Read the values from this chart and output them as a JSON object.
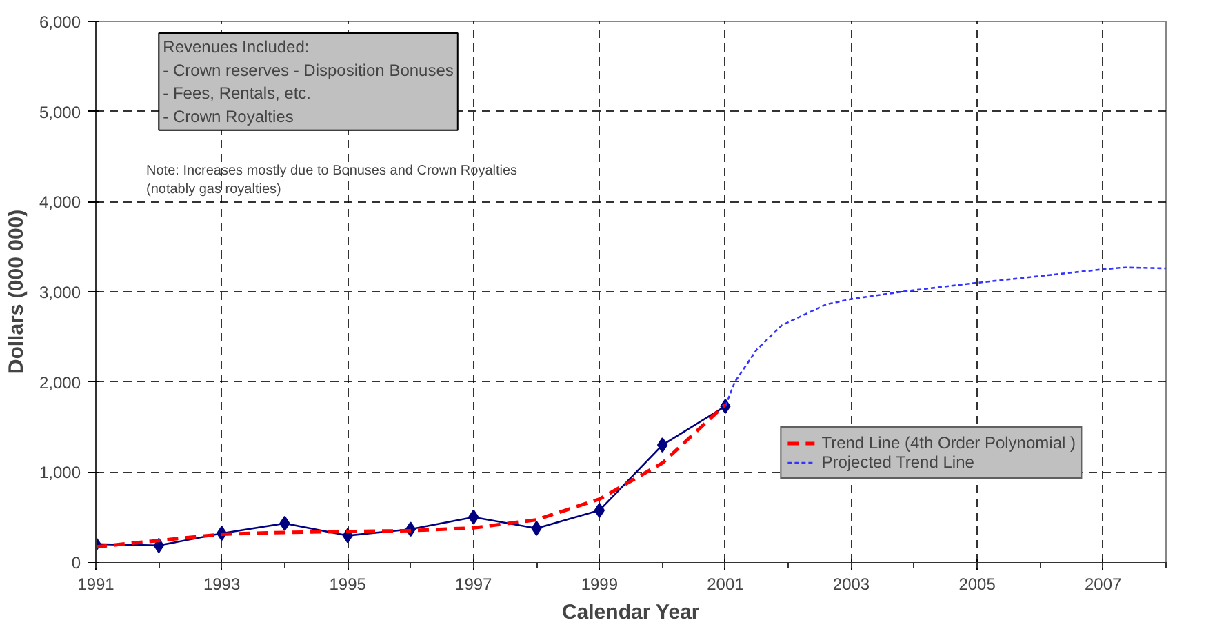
{
  "chart_data": {
    "type": "line",
    "xlabel": "Calendar Year",
    "ylabel": "Dollars (000 000)",
    "xlim": [
      1991,
      2008
    ],
    "ylim": [
      0,
      6000
    ],
    "xticks": [
      1991,
      1993,
      1995,
      1997,
      1999,
      2001,
      2003,
      2005,
      2007
    ],
    "yticks": [
      {
        "value": 0,
        "label": "0"
      },
      {
        "value": 1000,
        "label": "1,000"
      },
      {
        "value": 2000,
        "label": "2,000"
      },
      {
        "value": 3000,
        "label": "3,000"
      },
      {
        "value": 4000,
        "label": "4,000"
      },
      {
        "value": 5000,
        "label": "5,000"
      },
      {
        "value": 6000,
        "label": "6,000"
      }
    ],
    "grid": true,
    "legend": "bottom right",
    "series": [
      {
        "color": "#000080",
        "marker": "diamond",
        "line_style": "solid",
        "x": [
          1991,
          1992,
          1993,
          1994,
          1995,
          1996,
          1997,
          1998,
          1999,
          2000,
          2001
        ],
        "values": [
          200,
          185,
          320,
          430,
          295,
          365,
          500,
          375,
          575,
          1300,
          1730
        ]
      },
      {
        "name": "Trend Line (4th Order Polynomial )",
        "color": "#ff0000",
        "marker": "none",
        "line_style": "dashed",
        "x": [
          1991,
          1992,
          1993,
          1994,
          1995,
          1996,
          1997,
          1998,
          1999,
          2000,
          2001
        ],
        "values": [
          170,
          240,
          310,
          330,
          340,
          350,
          380,
          470,
          700,
          1100,
          1750
        ]
      },
      {
        "name": "Projected Trend Line",
        "color": "#3333ff",
        "marker": "none",
        "line_style": "dotted",
        "x": [
          2001,
          2001.15,
          2001.5,
          2001.9,
          2002.6,
          2003,
          2003.9,
          2005,
          2007,
          2007.35,
          2008
        ],
        "values": [
          1730,
          2000,
          2360,
          2630,
          2860,
          2920,
          3010,
          3100,
          3250,
          3270,
          3260
        ]
      }
    ],
    "annotations": [
      "Revenues Included:\n- Crown reserves - Disposition Bonuses\n- Fees, Rentals, etc.\n- Crown Royalties",
      "Note: Increases mostly due to Bonuses and Crown Royalties\n(notably gas royalties)"
    ]
  }
}
